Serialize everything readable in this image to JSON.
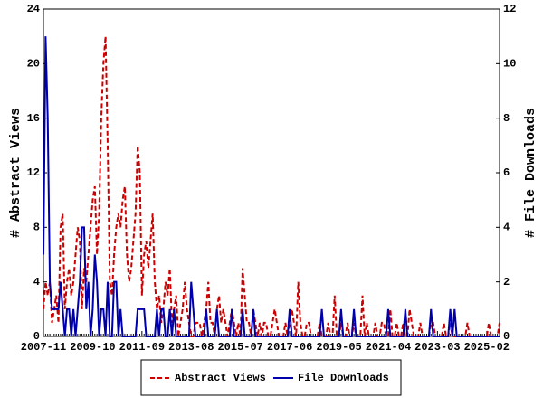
{
  "chart_data": {
    "type": "line",
    "y_label": "# Abstract Views",
    "y2_label": "# File Downloads",
    "categories": [
      "2007-11",
      null,
      null,
      null,
      null,
      null,
      null,
      null,
      null,
      null,
      null,
      null,
      null,
      null,
      null,
      null,
      null,
      null,
      null,
      null,
      null,
      null,
      null,
      "2009-10",
      null,
      null,
      null,
      null,
      null,
      null,
      null,
      null,
      null,
      null,
      null,
      null,
      null,
      null,
      null,
      null,
      null,
      null,
      null,
      null,
      null,
      null,
      "2011-09",
      null,
      null,
      null,
      null,
      null,
      null,
      null,
      null,
      null,
      null,
      null,
      null,
      null,
      null,
      null,
      null,
      null,
      null,
      null,
      null,
      null,
      null,
      "2013-08",
      null,
      null,
      null,
      null,
      null,
      null,
      null,
      null,
      null,
      null,
      null,
      null,
      null,
      null,
      null,
      null,
      null,
      null,
      null,
      null,
      null,
      null,
      "2015-07",
      null,
      null,
      null,
      null,
      null,
      null,
      null,
      null,
      null,
      null,
      null,
      null,
      null,
      null,
      null,
      null,
      null,
      null,
      null,
      null,
      null,
      null,
      "2017-06",
      null,
      null,
      null,
      null,
      null,
      null,
      null,
      null,
      null,
      null,
      null,
      null,
      null,
      null,
      null,
      null,
      null,
      null,
      null,
      null,
      null,
      null,
      "2019-05",
      null,
      null,
      null,
      null,
      null,
      null,
      null,
      null,
      null,
      null,
      null,
      null,
      null,
      null,
      null,
      null,
      null,
      null,
      null,
      null,
      null,
      null,
      "2021-04",
      null,
      null,
      null,
      null,
      null,
      null,
      null,
      null,
      null,
      null,
      null,
      null,
      null,
      null,
      null,
      null,
      null,
      null,
      null,
      null,
      null,
      null,
      "2023-03",
      null,
      null,
      null,
      null,
      null,
      null,
      null,
      null,
      null,
      null,
      null,
      null,
      null,
      null,
      null,
      null,
      null,
      null,
      null,
      null,
      null,
      null,
      "2025-02",
      null,
      null,
      null,
      null,
      null,
      null
    ],
    "series": [
      {
        "name": "Abstract Views",
        "color": "#cc0000",
        "dashed": true,
        "values": [
          2,
          4,
          3,
          4,
          1,
          2,
          3,
          1,
          8,
          9,
          2,
          4,
          5,
          3,
          4,
          6,
          8,
          7,
          2,
          5,
          4,
          6,
          8,
          10,
          11,
          6,
          9,
          16,
          20,
          22,
          14,
          4,
          3,
          6,
          8,
          9,
          8,
          10,
          11,
          6,
          4,
          5,
          7,
          9,
          14,
          12,
          3,
          6,
          7,
          5,
          7,
          9,
          4,
          2,
          3,
          1,
          2,
          4,
          3,
          5,
          1,
          2,
          3,
          0,
          1,
          2,
          4,
          2,
          1,
          0,
          0,
          1,
          1,
          1,
          0,
          1,
          2,
          4,
          1,
          1,
          0,
          2,
          3,
          1,
          2,
          1,
          0,
          1,
          2,
          1,
          0,
          1,
          0,
          5,
          3,
          1,
          1,
          0,
          2,
          1,
          0,
          1,
          0,
          1,
          1,
          0,
          0,
          1,
          2,
          1,
          0,
          0,
          0,
          1,
          0,
          1,
          2,
          1,
          0,
          4,
          1,
          0,
          0,
          1,
          1,
          0,
          0,
          0,
          0,
          1,
          0,
          0,
          0,
          1,
          0,
          0,
          3,
          0,
          0,
          1,
          0,
          0,
          1,
          0,
          0,
          1,
          0,
          0,
          0,
          3,
          0,
          1,
          0,
          0,
          0,
          1,
          0,
          0,
          1,
          1,
          0,
          0,
          2,
          0,
          0,
          1,
          0,
          0,
          1,
          0,
          0,
          2,
          1,
          0,
          0,
          0,
          1,
          0,
          0,
          0,
          0,
          1,
          1,
          0,
          0,
          0,
          0,
          1,
          0,
          0,
          1,
          0,
          0,
          0,
          0,
          0,
          0,
          0,
          1,
          0,
          0,
          0,
          0,
          0,
          0,
          0,
          0,
          0,
          1,
          0,
          0,
          0,
          0,
          1
        ]
      },
      {
        "name": "File Downloads",
        "color": "#0000aa",
        "axis": "y2",
        "dashed": false,
        "values": [
          3,
          11,
          8,
          2,
          1,
          1,
          1,
          1,
          2,
          1,
          0,
          1,
          1,
          0,
          1,
          0,
          1,
          2,
          4,
          4,
          1,
          2,
          0,
          1,
          3,
          2,
          0,
          1,
          1,
          0,
          2,
          0,
          0,
          2,
          2,
          0,
          1,
          0,
          0,
          0,
          0,
          0,
          0,
          0,
          1,
          1,
          1,
          1,
          0,
          0,
          0,
          0,
          0,
          1,
          0,
          1,
          1,
          0,
          0,
          1,
          0,
          1,
          0,
          0,
          0,
          0,
          0,
          0,
          0,
          2,
          1,
          0,
          0,
          0,
          0,
          0,
          1,
          0,
          0,
          0,
          0,
          1,
          0,
          0,
          0,
          0,
          0,
          0,
          1,
          0,
          0,
          0,
          0,
          1,
          0,
          0,
          0,
          0,
          1,
          0,
          0,
          0,
          0,
          0,
          0,
          0,
          0,
          0,
          0,
          0,
          0,
          0,
          0,
          0,
          0,
          1,
          0,
          0,
          0,
          0,
          0,
          0,
          0,
          0,
          0,
          0,
          0,
          0,
          0,
          0,
          1,
          0,
          0,
          0,
          0,
          0,
          0,
          0,
          0,
          1,
          0,
          0,
          0,
          0,
          0,
          1,
          0,
          0,
          0,
          0,
          0,
          0,
          0,
          0,
          0,
          0,
          0,
          0,
          0,
          0,
          0,
          1,
          0,
          0,
          0,
          0,
          0,
          0,
          0,
          1,
          0,
          0,
          0,
          0,
          0,
          0,
          0,
          0,
          0,
          0,
          0,
          1,
          0,
          0,
          0,
          0,
          0,
          0,
          0,
          0,
          1,
          0,
          1,
          0,
          0,
          0,
          0,
          0,
          0,
          0,
          0,
          0,
          0,
          0,
          0,
          0,
          0,
          0,
          0,
          0,
          0,
          0,
          0,
          0
        ]
      }
    ],
    "ylim": [
      0,
      24
    ],
    "yticks": [
      0,
      4,
      8,
      12,
      16,
      20,
      24
    ],
    "y2lim": [
      0,
      12
    ],
    "y2ticks": [
      0,
      2,
      4,
      6,
      8,
      10,
      12
    ],
    "legend": "bottom"
  }
}
